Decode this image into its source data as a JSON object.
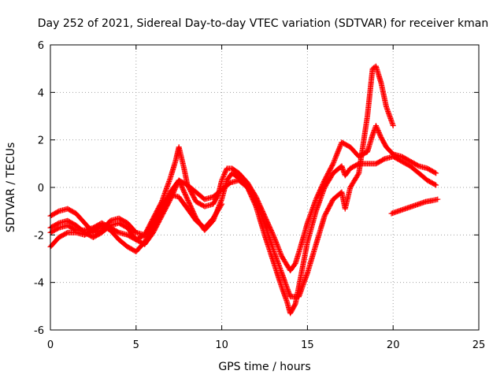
{
  "chart_data": {
    "type": "scatter",
    "title": "Day 252 of 2021, Sidereal Day-to-day VTEC variation (SDTVAR) for receiver kman",
    "xlabel": "GPS time / hours",
    "ylabel": "SDTVAR / TECUs",
    "xlim": [
      0,
      25
    ],
    "ylim": [
      -6,
      6
    ],
    "xticks": [
      "0",
      "5",
      "10",
      "15",
      "20",
      "25"
    ],
    "yticks": [
      "-6",
      "-4",
      "-2",
      "0",
      "2",
      "4",
      "6"
    ],
    "grid": true,
    "marker": "plus",
    "color": "#ff0000",
    "series": [
      {
        "x": [
          0,
          0.5,
          1,
          1.5,
          2,
          2.5,
          3,
          3.5,
          4,
          4.5,
          5,
          5.5,
          6,
          6.5,
          7,
          7.3,
          7.5,
          7.8,
          8,
          8.5,
          9,
          9.5,
          9.8,
          10,
          10.3,
          10.6,
          11,
          11.5,
          12,
          12.5,
          13,
          13.5,
          14,
          14.3,
          14.6,
          15,
          15.5,
          16,
          16.5,
          17,
          17.5,
          18,
          18.5,
          18.8,
          19,
          19.3,
          19.6,
          20,
          20.5,
          21,
          21.5,
          22,
          22.5
        ],
        "y": [
          -1.2,
          -1.0,
          -0.9,
          -1.1,
          -1.5,
          -1.9,
          -1.8,
          -1.4,
          -1.3,
          -1.5,
          -1.9,
          -2.0,
          -1.3,
          -0.6,
          0.4,
          1.1,
          1.7,
          0.8,
          0.1,
          -0.6,
          -0.8,
          -0.7,
          -0.3,
          0.3,
          0.8,
          0.8,
          0.6,
          0.2,
          -0.4,
          -1.2,
          -2.0,
          -2.9,
          -3.5,
          -3.2,
          -2.5,
          -1.5,
          -0.5,
          0.3,
          1.0,
          1.9,
          1.7,
          1.3,
          1.5,
          2.2,
          2.6,
          2.1,
          1.7,
          1.4,
          1.3,
          1.1,
          0.9,
          0.8,
          0.6
        ]
      },
      {
        "x": [
          0,
          0.5,
          1,
          1.5,
          2,
          2.5,
          3,
          3.5,
          4,
          4.5,
          5,
          5.5,
          6,
          6.5,
          7,
          7.5,
          8,
          8.5,
          9,
          9.5,
          10,
          10.3,
          10.6,
          11,
          11.5,
          12,
          12.5,
          13,
          13.5,
          13.8,
          14,
          14.3,
          14.6,
          15,
          15.5,
          16,
          16.5,
          17,
          17.2,
          17.5,
          18,
          18.5,
          19,
          19.5,
          20,
          20.5,
          21,
          21.5,
          22,
          22.5
        ],
        "y": [
          -1.7,
          -1.5,
          -1.4,
          -1.6,
          -1.9,
          -2.1,
          -1.9,
          -1.6,
          -1.5,
          -1.7,
          -2.2,
          -2.4,
          -1.9,
          -1.2,
          -0.5,
          0.3,
          -0.5,
          -1.3,
          -1.8,
          -1.4,
          -0.5,
          0.3,
          0.6,
          0.4,
          0.0,
          -0.8,
          -2.0,
          -3.1,
          -4.2,
          -4.8,
          -5.3,
          -4.9,
          -3.8,
          -2.3,
          -1.0,
          0.0,
          0.6,
          0.9,
          0.5,
          0.8,
          1.0,
          1.0,
          1.0,
          1.2,
          1.3,
          1.1,
          0.9,
          0.6,
          0.3,
          0.1
        ]
      },
      {
        "x": [
          0,
          0.5,
          1,
          1.5,
          2,
          2.5,
          3,
          3.5,
          4,
          4.5,
          5,
          5.5,
          6,
          6.5,
          7,
          7.5,
          8,
          8.5,
          9,
          9.5,
          10,
          10.5,
          11,
          11.5,
          12,
          12.5,
          13,
          13.5,
          14,
          14.5,
          15,
          15.5,
          16,
          16.5,
          17,
          17.2,
          17.5,
          18,
          18.5,
          18.8,
          19,
          19.3,
          19.6,
          20
        ],
        "y": [
          -2.5,
          -2.1,
          -1.9,
          -1.9,
          -2.0,
          -1.8,
          -1.6,
          -1.8,
          -2.2,
          -2.5,
          -2.7,
          -2.3,
          -1.6,
          -0.9,
          -0.2,
          0.3,
          0.1,
          -0.2,
          -0.5,
          -0.4,
          -0.1,
          0.2,
          0.3,
          0.0,
          -0.6,
          -1.5,
          -2.6,
          -3.6,
          -4.6,
          -4.6,
          -3.6,
          -2.4,
          -1.2,
          -0.5,
          -0.2,
          -0.9,
          0.0,
          0.6,
          3.0,
          5.0,
          5.1,
          4.4,
          3.4,
          2.6
        ]
      },
      {
        "x": [
          0,
          0.5,
          1,
          1.5,
          2,
          2.5,
          3,
          3.5,
          4,
          4.5,
          5,
          5.5,
          6,
          6.5,
          7,
          7.5,
          8,
          8.5,
          9,
          9.5,
          10
        ],
        "y": [
          -1.9,
          -1.7,
          -1.6,
          -1.8,
          -1.8,
          -1.7,
          -1.5,
          -1.7,
          -1.9,
          -2.0,
          -2.2,
          -2.0,
          -1.5,
          -1.0,
          -0.3,
          -0.4,
          -0.9,
          -1.4,
          -1.7,
          -1.3,
          -0.7
        ]
      },
      {
        "x": [
          19.9,
          20.3,
          20.7,
          21.1,
          21.5,
          21.9,
          22.3,
          22.6
        ],
        "y": [
          -1.1,
          -1.0,
          -0.9,
          -0.8,
          -0.7,
          -0.6,
          -0.55,
          -0.5
        ]
      }
    ]
  }
}
